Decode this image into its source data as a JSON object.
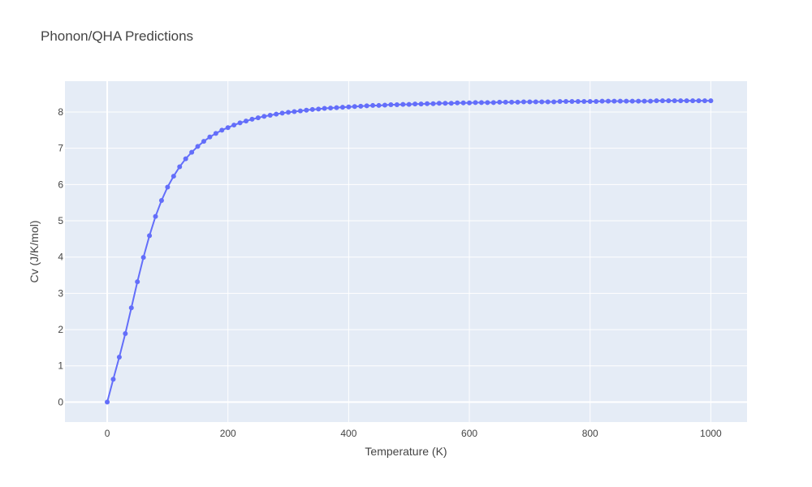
{
  "chart_data": {
    "type": "line",
    "title": "Phonon/QHA Predictions",
    "xlabel": "Temperature (K)",
    "ylabel": "Cv (J/K/mol)",
    "xlim": [
      -70,
      1060
    ],
    "ylim": [
      -0.55,
      8.85
    ],
    "xticks": [
      0,
      200,
      400,
      600,
      800,
      1000
    ],
    "yticks": [
      0,
      1,
      2,
      3,
      4,
      5,
      6,
      7,
      8
    ],
    "grid": true,
    "legend": "none",
    "colors": {
      "plot_bg": "#e5ecf6",
      "series": "#636efa",
      "grid": "#ffffff"
    },
    "series": [
      {
        "x": [
          0,
          10,
          20,
          30,
          40,
          50,
          60,
          70,
          80,
          90,
          100,
          110,
          120,
          130,
          140,
          150,
          160,
          170,
          180,
          190,
          200,
          210,
          220,
          230,
          240,
          250,
          260,
          270,
          280,
          290,
          300,
          310,
          320,
          330,
          340,
          350,
          360,
          370,
          380,
          390,
          400,
          410,
          420,
          430,
          440,
          450,
          460,
          470,
          480,
          490,
          500,
          510,
          520,
          530,
          540,
          550,
          560,
          570,
          580,
          590,
          600,
          610,
          620,
          630,
          640,
          650,
          660,
          670,
          680,
          690,
          700,
          710,
          720,
          730,
          740,
          750,
          760,
          770,
          780,
          790,
          800,
          810,
          820,
          830,
          840,
          850,
          860,
          870,
          880,
          890,
          900,
          910,
          920,
          930,
          940,
          950,
          960,
          970,
          980,
          990,
          1000
        ],
        "y": [
          0,
          0.63,
          1.24,
          1.89,
          2.6,
          3.32,
          3.99,
          4.59,
          5.12,
          5.56,
          5.93,
          6.23,
          6.49,
          6.71,
          6.89,
          7.05,
          7.19,
          7.31,
          7.41,
          7.5,
          7.57,
          7.64,
          7.7,
          7.75,
          7.8,
          7.84,
          7.88,
          7.91,
          7.94,
          7.97,
          7.99,
          8.01,
          8.03,
          8.05,
          8.07,
          8.08,
          8.1,
          8.11,
          8.12,
          8.13,
          8.14,
          8.15,
          8.16,
          8.17,
          8.18,
          8.18,
          8.19,
          8.2,
          8.2,
          8.21,
          8.21,
          8.22,
          8.22,
          8.23,
          8.23,
          8.24,
          8.24,
          8.24,
          8.25,
          8.25,
          8.25,
          8.26,
          8.26,
          8.26,
          8.26,
          8.27,
          8.27,
          8.27,
          8.27,
          8.28,
          8.28,
          8.28,
          8.28,
          8.28,
          8.28,
          8.29,
          8.29,
          8.29,
          8.29,
          8.29,
          8.29,
          8.29,
          8.3,
          8.3,
          8.3,
          8.3,
          8.3,
          8.3,
          8.3,
          8.3,
          8.3,
          8.31,
          8.31,
          8.31,
          8.31,
          8.31,
          8.31,
          8.31,
          8.31,
          8.31,
          8.31
        ]
      }
    ]
  }
}
